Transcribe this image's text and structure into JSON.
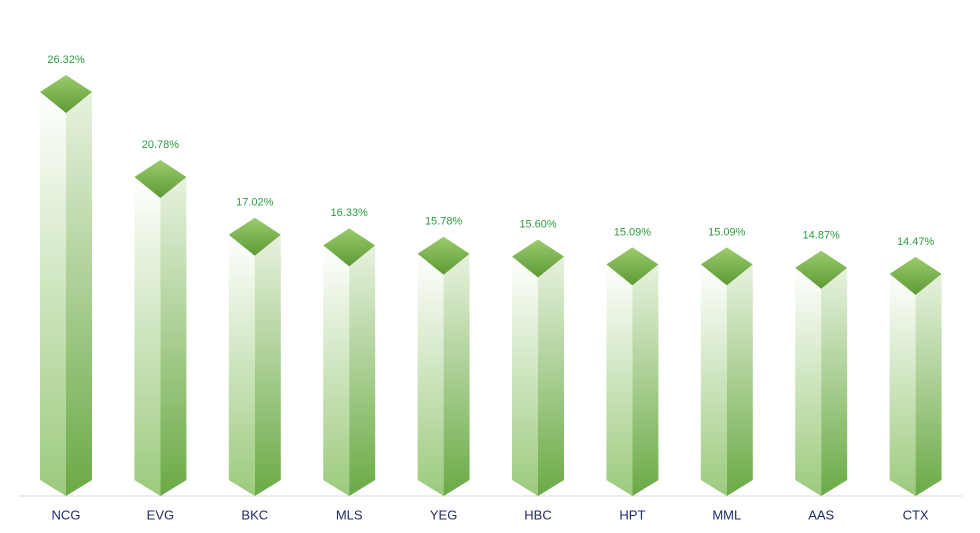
{
  "chart_data": {
    "type": "bar",
    "categories": [
      "NCG",
      "EVG",
      "BKC",
      "MLS",
      "YEG",
      "HBC",
      "HPT",
      "MML",
      "AAS",
      "CTX"
    ],
    "values": [
      26.32,
      20.78,
      17.02,
      16.33,
      15.78,
      15.6,
      15.09,
      15.09,
      14.87,
      14.47
    ],
    "value_labels": [
      "26.32%",
      "20.78%",
      "17.02%",
      "16.33%",
      "15.78%",
      "15.60%",
      "15.09%",
      "15.09%",
      "14.87%",
      "14.47%"
    ],
    "color": "#6aaa45"
  }
}
